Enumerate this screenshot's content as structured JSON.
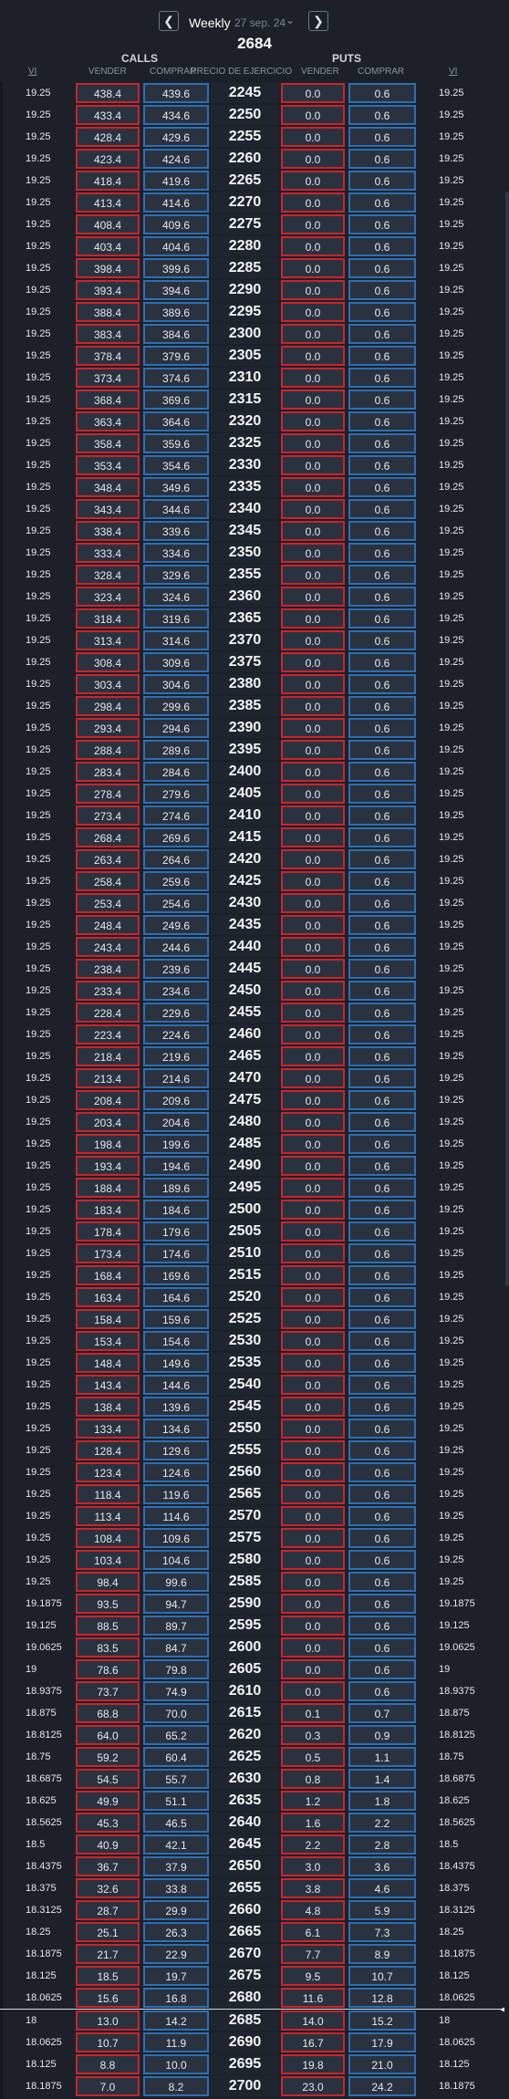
{
  "header": {
    "prev_icon": "chevron-left",
    "next_icon": "chevron-right",
    "period": "Weekly",
    "date": "27 sep. 24",
    "dropdown_icon": "chevron-down",
    "spot": "2684"
  },
  "columns": {
    "calls": "CALLS",
    "puts": "PUTS",
    "vi_left": "VI",
    "sell_left": "VENDER",
    "buy_left": "COMPRAR",
    "strike": "PRECIO DE EJERCICIO",
    "sell_right": "VENDER",
    "buy_right": "COMPRAR",
    "vi_right": "VI"
  },
  "rows": [
    {
      "vi": "19.25",
      "call_sell": "438.4",
      "call_buy": "439.6",
      "strike": "2245",
      "put_sell": "0.0",
      "put_buy": "0.6",
      "vi_r": "19.25"
    },
    {
      "vi": "19.25",
      "call_sell": "433.4",
      "call_buy": "434.6",
      "strike": "2250",
      "put_sell": "0.0",
      "put_buy": "0.6",
      "vi_r": "19.25"
    },
    {
      "vi": "19.25",
      "call_sell": "428.4",
      "call_buy": "429.6",
      "strike": "2255",
      "put_sell": "0.0",
      "put_buy": "0.6",
      "vi_r": "19.25"
    },
    {
      "vi": "19.25",
      "call_sell": "423.4",
      "call_buy": "424.6",
      "strike": "2260",
      "put_sell": "0.0",
      "put_buy": "0.6",
      "vi_r": "19.25"
    },
    {
      "vi": "19.25",
      "call_sell": "418.4",
      "call_buy": "419.6",
      "strike": "2265",
      "put_sell": "0.0",
      "put_buy": "0.6",
      "vi_r": "19.25"
    },
    {
      "vi": "19.25",
      "call_sell": "413.4",
      "call_buy": "414.6",
      "strike": "2270",
      "put_sell": "0.0",
      "put_buy": "0.6",
      "vi_r": "19.25"
    },
    {
      "vi": "19.25",
      "call_sell": "408.4",
      "call_buy": "409.6",
      "strike": "2275",
      "put_sell": "0.0",
      "put_buy": "0.6",
      "vi_r": "19.25"
    },
    {
      "vi": "19.25",
      "call_sell": "403.4",
      "call_buy": "404.6",
      "strike": "2280",
      "put_sell": "0.0",
      "put_buy": "0.6",
      "vi_r": "19.25"
    },
    {
      "vi": "19.25",
      "call_sell": "398.4",
      "call_buy": "399.6",
      "strike": "2285",
      "put_sell": "0.0",
      "put_buy": "0.6",
      "vi_r": "19.25"
    },
    {
      "vi": "19.25",
      "call_sell": "393.4",
      "call_buy": "394.6",
      "strike": "2290",
      "put_sell": "0.0",
      "put_buy": "0.6",
      "vi_r": "19.25"
    },
    {
      "vi": "19.25",
      "call_sell": "388.4",
      "call_buy": "389.6",
      "strike": "2295",
      "put_sell": "0.0",
      "put_buy": "0.6",
      "vi_r": "19.25"
    },
    {
      "vi": "19.25",
      "call_sell": "383.4",
      "call_buy": "384.6",
      "strike": "2300",
      "put_sell": "0.0",
      "put_buy": "0.6",
      "vi_r": "19.25"
    },
    {
      "vi": "19.25",
      "call_sell": "378.4",
      "call_buy": "379.6",
      "strike": "2305",
      "put_sell": "0.0",
      "put_buy": "0.6",
      "vi_r": "19.25"
    },
    {
      "vi": "19.25",
      "call_sell": "373.4",
      "call_buy": "374.6",
      "strike": "2310",
      "put_sell": "0.0",
      "put_buy": "0.6",
      "vi_r": "19.25"
    },
    {
      "vi": "19.25",
      "call_sell": "368.4",
      "call_buy": "369.6",
      "strike": "2315",
      "put_sell": "0.0",
      "put_buy": "0.6",
      "vi_r": "19.25"
    },
    {
      "vi": "19.25",
      "call_sell": "363.4",
      "call_buy": "364.6",
      "strike": "2320",
      "put_sell": "0.0",
      "put_buy": "0.6",
      "vi_r": "19.25"
    },
    {
      "vi": "19.25",
      "call_sell": "358.4",
      "call_buy": "359.6",
      "strike": "2325",
      "put_sell": "0.0",
      "put_buy": "0.6",
      "vi_r": "19.25"
    },
    {
      "vi": "19.25",
      "call_sell": "353.4",
      "call_buy": "354.6",
      "strike": "2330",
      "put_sell": "0.0",
      "put_buy": "0.6",
      "vi_r": "19.25"
    },
    {
      "vi": "19.25",
      "call_sell": "348.4",
      "call_buy": "349.6",
      "strike": "2335",
      "put_sell": "0.0",
      "put_buy": "0.6",
      "vi_r": "19.25"
    },
    {
      "vi": "19.25",
      "call_sell": "343.4",
      "call_buy": "344.6",
      "strike": "2340",
      "put_sell": "0.0",
      "put_buy": "0.6",
      "vi_r": "19.25"
    },
    {
      "vi": "19.25",
      "call_sell": "338.4",
      "call_buy": "339.6",
      "strike": "2345",
      "put_sell": "0.0",
      "put_buy": "0.6",
      "vi_r": "19.25"
    },
    {
      "vi": "19.25",
      "call_sell": "333.4",
      "call_buy": "334.6",
      "strike": "2350",
      "put_sell": "0.0",
      "put_buy": "0.6",
      "vi_r": "19.25"
    },
    {
      "vi": "19.25",
      "call_sell": "328.4",
      "call_buy": "329.6",
      "strike": "2355",
      "put_sell": "0.0",
      "put_buy": "0.6",
      "vi_r": "19.25"
    },
    {
      "vi": "19.25",
      "call_sell": "323.4",
      "call_buy": "324.6",
      "strike": "2360",
      "put_sell": "0.0",
      "put_buy": "0.6",
      "vi_r": "19.25"
    },
    {
      "vi": "19.25",
      "call_sell": "318.4",
      "call_buy": "319.6",
      "strike": "2365",
      "put_sell": "0.0",
      "put_buy": "0.6",
      "vi_r": "19.25"
    },
    {
      "vi": "19.25",
      "call_sell": "313.4",
      "call_buy": "314.6",
      "strike": "2370",
      "put_sell": "0.0",
      "put_buy": "0.6",
      "vi_r": "19.25"
    },
    {
      "vi": "19.25",
      "call_sell": "308.4",
      "call_buy": "309.6",
      "strike": "2375",
      "put_sell": "0.0",
      "put_buy": "0.6",
      "vi_r": "19.25"
    },
    {
      "vi": "19.25",
      "call_sell": "303.4",
      "call_buy": "304.6",
      "strike": "2380",
      "put_sell": "0.0",
      "put_buy": "0.6",
      "vi_r": "19.25"
    },
    {
      "vi": "19.25",
      "call_sell": "298.4",
      "call_buy": "299.6",
      "strike": "2385",
      "put_sell": "0.0",
      "put_buy": "0.6",
      "vi_r": "19.25"
    },
    {
      "vi": "19.25",
      "call_sell": "293.4",
      "call_buy": "294.6",
      "strike": "2390",
      "put_sell": "0.0",
      "put_buy": "0.6",
      "vi_r": "19.25"
    },
    {
      "vi": "19.25",
      "call_sell": "288.4",
      "call_buy": "289.6",
      "strike": "2395",
      "put_sell": "0.0",
      "put_buy": "0.6",
      "vi_r": "19.25"
    },
    {
      "vi": "19.25",
      "call_sell": "283.4",
      "call_buy": "284.6",
      "strike": "2400",
      "put_sell": "0.0",
      "put_buy": "0.6",
      "vi_r": "19.25"
    },
    {
      "vi": "19.25",
      "call_sell": "278.4",
      "call_buy": "279.6",
      "strike": "2405",
      "put_sell": "0.0",
      "put_buy": "0.6",
      "vi_r": "19.25"
    },
    {
      "vi": "19.25",
      "call_sell": "273.4",
      "call_buy": "274.6",
      "strike": "2410",
      "put_sell": "0.0",
      "put_buy": "0.6",
      "vi_r": "19.25"
    },
    {
      "vi": "19.25",
      "call_sell": "268.4",
      "call_buy": "269.6",
      "strike": "2415",
      "put_sell": "0.0",
      "put_buy": "0.6",
      "vi_r": "19.25"
    },
    {
      "vi": "19.25",
      "call_sell": "263.4",
      "call_buy": "264.6",
      "strike": "2420",
      "put_sell": "0.0",
      "put_buy": "0.6",
      "vi_r": "19.25"
    },
    {
      "vi": "19.25",
      "call_sell": "258.4",
      "call_buy": "259.6",
      "strike": "2425",
      "put_sell": "0.0",
      "put_buy": "0.6",
      "vi_r": "19.25"
    },
    {
      "vi": "19.25",
      "call_sell": "253.4",
      "call_buy": "254.6",
      "strike": "2430",
      "put_sell": "0.0",
      "put_buy": "0.6",
      "vi_r": "19.25"
    },
    {
      "vi": "19.25",
      "call_sell": "248.4",
      "call_buy": "249.6",
      "strike": "2435",
      "put_sell": "0.0",
      "put_buy": "0.6",
      "vi_r": "19.25"
    },
    {
      "vi": "19.25",
      "call_sell": "243.4",
      "call_buy": "244.6",
      "strike": "2440",
      "put_sell": "0.0",
      "put_buy": "0.6",
      "vi_r": "19.25"
    },
    {
      "vi": "19.25",
      "call_sell": "238.4",
      "call_buy": "239.6",
      "strike": "2445",
      "put_sell": "0.0",
      "put_buy": "0.6",
      "vi_r": "19.25"
    },
    {
      "vi": "19.25",
      "call_sell": "233.4",
      "call_buy": "234.6",
      "strike": "2450",
      "put_sell": "0.0",
      "put_buy": "0.6",
      "vi_r": "19.25"
    },
    {
      "vi": "19.25",
      "call_sell": "228.4",
      "call_buy": "229.6",
      "strike": "2455",
      "put_sell": "0.0",
      "put_buy": "0.6",
      "vi_r": "19.25"
    },
    {
      "vi": "19.25",
      "call_sell": "223.4",
      "call_buy": "224.6",
      "strike": "2460",
      "put_sell": "0.0",
      "put_buy": "0.6",
      "vi_r": "19.25"
    },
    {
      "vi": "19.25",
      "call_sell": "218.4",
      "call_buy": "219.6",
      "strike": "2465",
      "put_sell": "0.0",
      "put_buy": "0.6",
      "vi_r": "19.25"
    },
    {
      "vi": "19.25",
      "call_sell": "213.4",
      "call_buy": "214.6",
      "strike": "2470",
      "put_sell": "0.0",
      "put_buy": "0.6",
      "vi_r": "19.25"
    },
    {
      "vi": "19.25",
      "call_sell": "208.4",
      "call_buy": "209.6",
      "strike": "2475",
      "put_sell": "0.0",
      "put_buy": "0.6",
      "vi_r": "19.25"
    },
    {
      "vi": "19.25",
      "call_sell": "203.4",
      "call_buy": "204.6",
      "strike": "2480",
      "put_sell": "0.0",
      "put_buy": "0.6",
      "vi_r": "19.25"
    },
    {
      "vi": "19.25",
      "call_sell": "198.4",
      "call_buy": "199.6",
      "strike": "2485",
      "put_sell": "0.0",
      "put_buy": "0.6",
      "vi_r": "19.25"
    },
    {
      "vi": "19.25",
      "call_sell": "193.4",
      "call_buy": "194.6",
      "strike": "2490",
      "put_sell": "0.0",
      "put_buy": "0.6",
      "vi_r": "19.25"
    },
    {
      "vi": "19.25",
      "call_sell": "188.4",
      "call_buy": "189.6",
      "strike": "2495",
      "put_sell": "0.0",
      "put_buy": "0.6",
      "vi_r": "19.25"
    },
    {
      "vi": "19.25",
      "call_sell": "183.4",
      "call_buy": "184.6",
      "strike": "2500",
      "put_sell": "0.0",
      "put_buy": "0.6",
      "vi_r": "19.25"
    },
    {
      "vi": "19.25",
      "call_sell": "178.4",
      "call_buy": "179.6",
      "strike": "2505",
      "put_sell": "0.0",
      "put_buy": "0.6",
      "vi_r": "19.25"
    },
    {
      "vi": "19.25",
      "call_sell": "173.4",
      "call_buy": "174.6",
      "strike": "2510",
      "put_sell": "0.0",
      "put_buy": "0.6",
      "vi_r": "19.25"
    },
    {
      "vi": "19.25",
      "call_sell": "168.4",
      "call_buy": "169.6",
      "strike": "2515",
      "put_sell": "0.0",
      "put_buy": "0.6",
      "vi_r": "19.25"
    },
    {
      "vi": "19.25",
      "call_sell": "163.4",
      "call_buy": "164.6",
      "strike": "2520",
      "put_sell": "0.0",
      "put_buy": "0.6",
      "vi_r": "19.25"
    },
    {
      "vi": "19.25",
      "call_sell": "158.4",
      "call_buy": "159.6",
      "strike": "2525",
      "put_sell": "0.0",
      "put_buy": "0.6",
      "vi_r": "19.25"
    },
    {
      "vi": "19.25",
      "call_sell": "153.4",
      "call_buy": "154.6",
      "strike": "2530",
      "put_sell": "0.0",
      "put_buy": "0.6",
      "vi_r": "19.25"
    },
    {
      "vi": "19.25",
      "call_sell": "148.4",
      "call_buy": "149.6",
      "strike": "2535",
      "put_sell": "0.0",
      "put_buy": "0.6",
      "vi_r": "19.25"
    },
    {
      "vi": "19.25",
      "call_sell": "143.4",
      "call_buy": "144.6",
      "strike": "2540",
      "put_sell": "0.0",
      "put_buy": "0.6",
      "vi_r": "19.25"
    },
    {
      "vi": "19.25",
      "call_sell": "138.4",
      "call_buy": "139.6",
      "strike": "2545",
      "put_sell": "0.0",
      "put_buy": "0.6",
      "vi_r": "19.25"
    },
    {
      "vi": "19.25",
      "call_sell": "133.4",
      "call_buy": "134.6",
      "strike": "2550",
      "put_sell": "0.0",
      "put_buy": "0.6",
      "vi_r": "19.25"
    },
    {
      "vi": "19.25",
      "call_sell": "128.4",
      "call_buy": "129.6",
      "strike": "2555",
      "put_sell": "0.0",
      "put_buy": "0.6",
      "vi_r": "19.25"
    },
    {
      "vi": "19.25",
      "call_sell": "123.4",
      "call_buy": "124.6",
      "strike": "2560",
      "put_sell": "0.0",
      "put_buy": "0.6",
      "vi_r": "19.25"
    },
    {
      "vi": "19.25",
      "call_sell": "118.4",
      "call_buy": "119.6",
      "strike": "2565",
      "put_sell": "0.0",
      "put_buy": "0.6",
      "vi_r": "19.25"
    },
    {
      "vi": "19.25",
      "call_sell": "113.4",
      "call_buy": "114.6",
      "strike": "2570",
      "put_sell": "0.0",
      "put_buy": "0.6",
      "vi_r": "19.25"
    },
    {
      "vi": "19.25",
      "call_sell": "108.4",
      "call_buy": "109.6",
      "strike": "2575",
      "put_sell": "0.0",
      "put_buy": "0.6",
      "vi_r": "19.25"
    },
    {
      "vi": "19.25",
      "call_sell": "103.4",
      "call_buy": "104.6",
      "strike": "2580",
      "put_sell": "0.0",
      "put_buy": "0.6",
      "vi_r": "19.25"
    },
    {
      "vi": "19.25",
      "call_sell": "98.4",
      "call_buy": "99.6",
      "strike": "2585",
      "put_sell": "0.0",
      "put_buy": "0.6",
      "vi_r": "19.25"
    },
    {
      "vi": "19.1875",
      "call_sell": "93.5",
      "call_buy": "94.7",
      "strike": "2590",
      "put_sell": "0.0",
      "put_buy": "0.6",
      "vi_r": "19.1875"
    },
    {
      "vi": "19.125",
      "call_sell": "88.5",
      "call_buy": "89.7",
      "strike": "2595",
      "put_sell": "0.0",
      "put_buy": "0.6",
      "vi_r": "19.125"
    },
    {
      "vi": "19.0625",
      "call_sell": "83.5",
      "call_buy": "84.7",
      "strike": "2600",
      "put_sell": "0.0",
      "put_buy": "0.6",
      "vi_r": "19.0625"
    },
    {
      "vi": "19",
      "call_sell": "78.6",
      "call_buy": "79.8",
      "strike": "2605",
      "put_sell": "0.0",
      "put_buy": "0.6",
      "vi_r": "19"
    },
    {
      "vi": "18.9375",
      "call_sell": "73.7",
      "call_buy": "74.9",
      "strike": "2610",
      "put_sell": "0.0",
      "put_buy": "0.6",
      "vi_r": "18.9375"
    },
    {
      "vi": "18.875",
      "call_sell": "68.8",
      "call_buy": "70.0",
      "strike": "2615",
      "put_sell": "0.1",
      "put_buy": "0.7",
      "vi_r": "18.875"
    },
    {
      "vi": "18.8125",
      "call_sell": "64.0",
      "call_buy": "65.2",
      "strike": "2620",
      "put_sell": "0.3",
      "put_buy": "0.9",
      "vi_r": "18.8125"
    },
    {
      "vi": "18.75",
      "call_sell": "59.2",
      "call_buy": "60.4",
      "strike": "2625",
      "put_sell": "0.5",
      "put_buy": "1.1",
      "vi_r": "18.75"
    },
    {
      "vi": "18.6875",
      "call_sell": "54.5",
      "call_buy": "55.7",
      "strike": "2630",
      "put_sell": "0.8",
      "put_buy": "1.4",
      "vi_r": "18.6875"
    },
    {
      "vi": "18.625",
      "call_sell": "49.9",
      "call_buy": "51.1",
      "strike": "2635",
      "put_sell": "1.2",
      "put_buy": "1.8",
      "vi_r": "18.625"
    },
    {
      "vi": "18.5625",
      "call_sell": "45.3",
      "call_buy": "46.5",
      "strike": "2640",
      "put_sell": "1.6",
      "put_buy": "2.2",
      "vi_r": "18.5625"
    },
    {
      "vi": "18.5",
      "call_sell": "40.9",
      "call_buy": "42.1",
      "strike": "2645",
      "put_sell": "2.2",
      "put_buy": "2.8",
      "vi_r": "18.5"
    },
    {
      "vi": "18.4375",
      "call_sell": "36.7",
      "call_buy": "37.9",
      "strike": "2650",
      "put_sell": "3.0",
      "put_buy": "3.6",
      "vi_r": "18.4375"
    },
    {
      "vi": "18.375",
      "call_sell": "32.6",
      "call_buy": "33.8",
      "strike": "2655",
      "put_sell": "3.8",
      "put_buy": "4.6",
      "vi_r": "18.375"
    },
    {
      "vi": "18.3125",
      "call_sell": "28.7",
      "call_buy": "29.9",
      "strike": "2660",
      "put_sell": "4.8",
      "put_buy": "5.9",
      "vi_r": "18.3125"
    },
    {
      "vi": "18.25",
      "call_sell": "25.1",
      "call_buy": "26.3",
      "strike": "2665",
      "put_sell": "6.1",
      "put_buy": "7.3",
      "vi_r": "18.25"
    },
    {
      "vi": "18.1875",
      "call_sell": "21.7",
      "call_buy": "22.9",
      "strike": "2670",
      "put_sell": "7.7",
      "put_buy": "8.9",
      "vi_r": "18.1875"
    },
    {
      "vi": "18.125",
      "call_sell": "18.5",
      "call_buy": "19.7",
      "strike": "2675",
      "put_sell": "9.5",
      "put_buy": "10.7",
      "vi_r": "18.125"
    },
    {
      "vi": "18.0625",
      "call_sell": "15.6",
      "call_buy": "16.8",
      "strike": "2680",
      "put_sell": "11.6",
      "put_buy": "12.8",
      "vi_r": "18.0625"
    },
    {
      "vi": "18",
      "call_sell": "13.0",
      "call_buy": "14.2",
      "strike": "2685",
      "put_sell": "14.0",
      "put_buy": "15.2",
      "vi_r": "18",
      "atm": true
    },
    {
      "vi": "18.0625",
      "call_sell": "10.7",
      "call_buy": "11.9",
      "strike": "2690",
      "put_sell": "16.7",
      "put_buy": "17.9",
      "vi_r": "18.0625"
    },
    {
      "vi": "18.125",
      "call_sell": "8.8",
      "call_buy": "10.0",
      "strike": "2695",
      "put_sell": "19.8",
      "put_buy": "21.0",
      "vi_r": "18.125"
    },
    {
      "vi": "18.1875",
      "call_sell": "7.0",
      "call_buy": "8.2",
      "strike": "2700",
      "put_sell": "23.0",
      "put_buy": "24.2",
      "vi_r": "18.1875"
    }
  ]
}
